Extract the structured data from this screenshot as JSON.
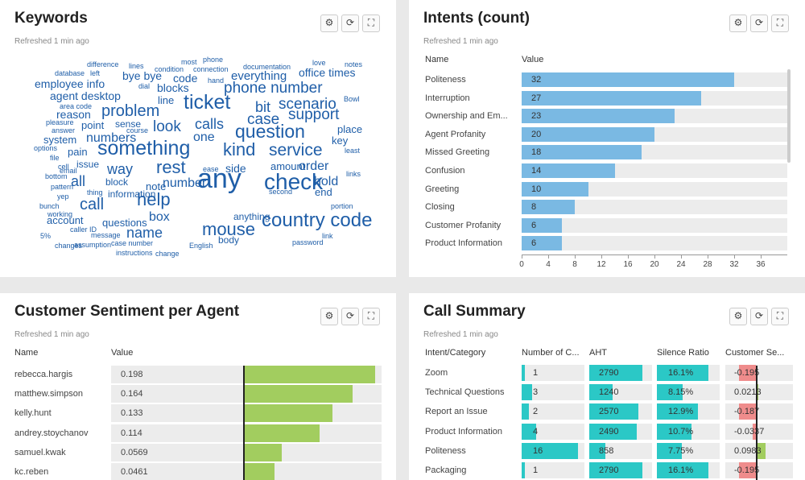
{
  "keywords": {
    "title": "Keywords",
    "refreshed": "Refreshed 1 min ago",
    "words": [
      "difference",
      "lines",
      "condition",
      "most",
      "phone",
      "connection",
      "documentation",
      "love",
      "notes",
      "database",
      "left",
      "bye bye",
      "code",
      "everything",
      "office times",
      "employee info",
      "dial",
      "blocks",
      "hand",
      "phone number",
      "agent desktop",
      "line",
      "ticket",
      "bit",
      "scenario",
      "Bowl",
      "area code",
      "reason",
      "problem",
      "case",
      "support",
      "pleasure",
      "point",
      "sense",
      "calls",
      "answer",
      "course",
      "look",
      "question",
      "place",
      "system",
      "numbers",
      "one",
      "key",
      "options",
      "something",
      "kind",
      "service",
      "least",
      "file",
      "pain",
      "cell",
      "issue",
      "way",
      "rest",
      "amount",
      "order",
      "links",
      "bottom",
      "email",
      "block",
      "ease",
      "side",
      "hold",
      "pattern",
      "all",
      "note",
      "number",
      "any",
      "second",
      "check",
      "end",
      "yep",
      "thing",
      "information",
      "call",
      "help",
      "portion",
      "bunch",
      "working",
      "account",
      "questions",
      "box",
      "anything",
      "country code",
      "5%",
      "caller ID",
      "message",
      "name",
      "mouse",
      "link",
      "changes",
      "assumption",
      "case number",
      "body",
      "password",
      "instructions",
      "change",
      "English"
    ]
  },
  "intents": {
    "title": "Intents (count)",
    "refreshed": "Refreshed 1 min ago",
    "col_name": "Name",
    "col_value": "Value"
  },
  "chart_data": [
    {
      "type": "bar",
      "title": "Intents (count)",
      "categories": [
        "Politeness",
        "Interruption",
        "Ownership and Em...",
        "Agent Profanity",
        "Missed Greeting",
        "Confusion",
        "Greeting",
        "Closing",
        "Customer Profanity",
        "Product Information"
      ],
      "values": [
        32,
        27,
        23,
        20,
        18,
        14,
        10,
        8,
        6,
        6
      ],
      "xticks": [
        "0",
        "4",
        "8",
        "12",
        "16",
        "20",
        "24",
        "28",
        "32",
        "36"
      ],
      "xlim": [
        0,
        40
      ]
    },
    {
      "type": "bar",
      "title": "Customer Sentiment per Agent",
      "categories": [
        "rebecca.hargis",
        "matthew.simpson",
        "kelly.hunt",
        "andrey.stoychanov",
        "samuel.kwak",
        "kc.reben"
      ],
      "values": [
        0.198,
        0.164,
        0.133,
        0.114,
        0.0569,
        0.0461
      ],
      "labels": [
        "0.198",
        "0.164",
        "0.133",
        "0.114",
        "0.0569",
        "0.0461"
      ],
      "xlim": [
        -0.2,
        0.2
      ]
    },
    {
      "type": "table",
      "title": "Call Summary",
      "columns": [
        "Intent/Category",
        "Number of C...",
        "AHT",
        "Silence Ratio",
        "Customer Se..."
      ],
      "rows": [
        {
          "name": "Zoom",
          "count": 1,
          "count_label": "1",
          "aht": 2790,
          "aht_label": "2790",
          "silence": 16.1,
          "silence_label": "16.1%",
          "sent": -0.195,
          "sent_label": "-0.195"
        },
        {
          "name": "Technical Questions",
          "count": 3,
          "count_label": "3",
          "aht": 1240,
          "aht_label": "1240",
          "silence": 8.15,
          "silence_label": "8.15%",
          "sent": 0.0213,
          "sent_label": "0.0213"
        },
        {
          "name": "Report an Issue",
          "count": 2,
          "count_label": "2",
          "aht": 2570,
          "aht_label": "2570",
          "silence": 12.9,
          "silence_label": "12.9%",
          "sent": -0.187,
          "sent_label": "-0.187"
        },
        {
          "name": "Product Information",
          "count": 4,
          "count_label": "4",
          "aht": 2490,
          "aht_label": "2490",
          "silence": 10.7,
          "silence_label": "10.7%",
          "sent": -0.0337,
          "sent_label": "-0.0337"
        },
        {
          "name": "Politeness",
          "count": 16,
          "count_label": "16",
          "aht": 858,
          "aht_label": "858",
          "silence": 7.75,
          "silence_label": "7.75%",
          "sent": 0.0983,
          "sent_label": "0.0983"
        },
        {
          "name": "Packaging",
          "count": 1,
          "count_label": "1",
          "aht": 2790,
          "aht_label": "2790",
          "silence": 16.1,
          "silence_label": "16.1%",
          "sent": -0.195,
          "sent_label": "-0.195"
        }
      ]
    }
  ],
  "sentiment": {
    "title": "Customer Sentiment per Agent",
    "refreshed": "Refreshed 1 min ago",
    "col_name": "Name",
    "col_value": "Value"
  },
  "summary": {
    "title": "Call Summary",
    "refreshed": "Refreshed 1 min ago"
  },
  "colors": {
    "cloud": "#1f5ea8",
    "intent_bar": "#7ab9e3",
    "sentiment_bar": "#a2cd5f",
    "teal": "#2bc8c6",
    "negative": "#ef8c8c"
  },
  "tools": {
    "settings_icon": "⚙",
    "refresh_icon": "⟳",
    "expand_icon": "⛶"
  }
}
